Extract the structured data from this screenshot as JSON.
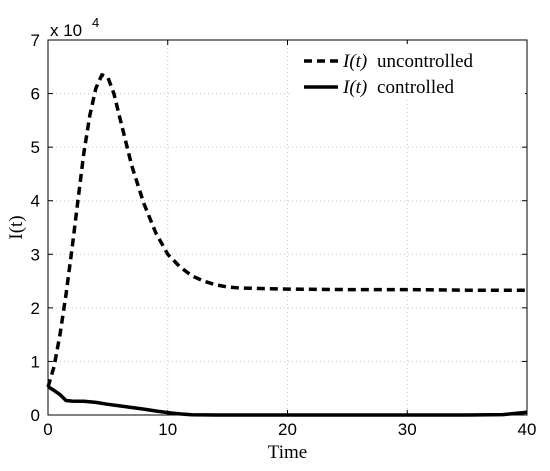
{
  "chart_data": {
    "type": "line",
    "xlabel": "Time",
    "ylabel": "I(t)",
    "xlim": [
      0,
      40
    ],
    "ylim": [
      0,
      70000
    ],
    "xticks": [
      0,
      10,
      20,
      30,
      40
    ],
    "yticks": [
      0,
      10000,
      20000,
      30000,
      40000,
      50000,
      60000,
      70000
    ],
    "xtick_labels": [
      "0",
      "10",
      "20",
      "30",
      "40"
    ],
    "ytick_labels": [
      "0",
      "1",
      "2",
      "3",
      "4",
      "5",
      "6",
      "7"
    ],
    "y_multiplier_label": "x 10",
    "y_multiplier_exponent": "4",
    "grid": true,
    "legend_position": "top-right",
    "series": [
      {
        "name": "I(t) uncontrolled",
        "name_math": "I(t)",
        "name_text": "uncontrolled",
        "style": "dashed",
        "color": "#000000",
        "x": [
          0,
          0.5,
          1,
          1.5,
          2,
          2.5,
          3,
          3.5,
          4,
          4.5,
          5,
          5.5,
          6,
          6.5,
          7,
          8,
          9,
          10,
          11,
          12,
          13,
          14,
          15,
          16,
          18,
          20,
          25,
          30,
          35,
          40
        ],
        "y": [
          5200,
          9000,
          15000,
          22500,
          31000,
          40000,
          49000,
          56000,
          61000,
          63500,
          63000,
          60000,
          55500,
          51000,
          46500,
          39500,
          34000,
          30000,
          27700,
          26000,
          25000,
          24300,
          23900,
          23700,
          23600,
          23500,
          23400,
          23400,
          23300,
          23300
        ]
      },
      {
        "name": "I(t) controlled",
        "name_math": "I(t)",
        "name_text": "controlled",
        "style": "solid",
        "color": "#000000",
        "x": [
          0,
          0.5,
          1,
          1.5,
          2,
          3,
          4,
          5,
          6,
          7,
          8,
          9,
          10,
          11,
          12,
          14,
          16,
          20,
          25,
          30,
          35,
          38,
          40
        ],
        "y": [
          5300,
          4600,
          3800,
          2700,
          2600,
          2550,
          2350,
          2000,
          1700,
          1400,
          1100,
          750,
          450,
          200,
          60,
          0,
          0,
          0,
          0,
          0,
          0,
          80,
          500
        ]
      }
    ]
  }
}
